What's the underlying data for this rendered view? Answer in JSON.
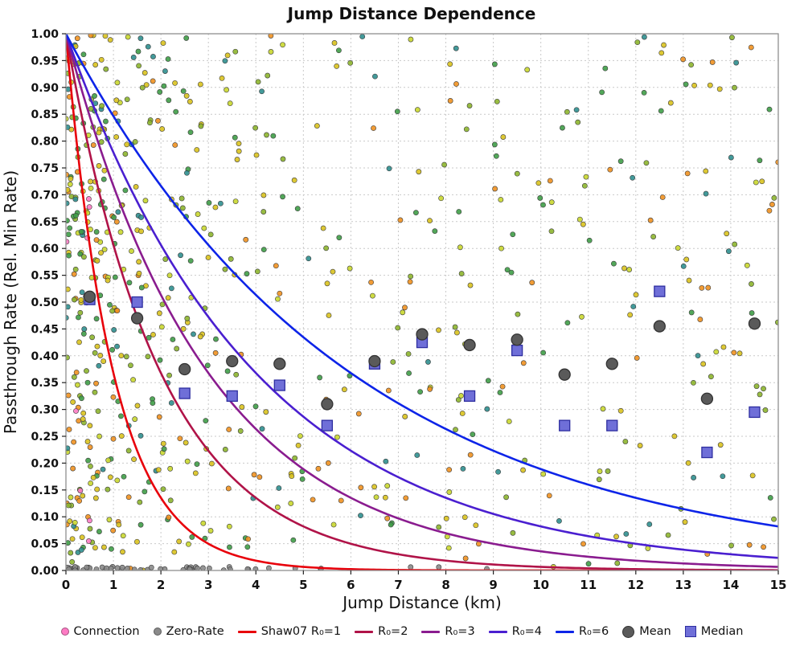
{
  "chart": {
    "title": "Jump Distance Dependence",
    "xlabel": "Jump Distance (km)",
    "ylabel": "Passthrough Rate (Rel. Min Rate)"
  },
  "chart_data": {
    "type": "scatter",
    "title": "Jump Distance Dependence",
    "xlabel": "Jump Distance (km)",
    "ylabel": "Passthrough Rate (Rel. Min Rate)",
    "xlim": [
      0,
      15
    ],
    "ylim": [
      0,
      1
    ],
    "x_ticks": [
      0,
      1,
      2,
      3,
      4,
      5,
      6,
      7,
      8,
      9,
      10,
      11,
      12,
      13,
      14,
      15
    ],
    "y_ticks": [
      0,
      0.05,
      0.1,
      0.15,
      0.2,
      0.25,
      0.3,
      0.35,
      0.4,
      0.45,
      0.5,
      0.55,
      0.6,
      0.65,
      0.7,
      0.75,
      0.8,
      0.85,
      0.9,
      0.95,
      1
    ],
    "grid": true,
    "legend_position": "bottom",
    "curves": [
      {
        "name": "Shaw07 R₀=1",
        "R0": 1,
        "color": "#e8000b",
        "formula": "y = exp(-x/1)"
      },
      {
        "name": "R₀=2",
        "R0": 2,
        "color": "#b01348",
        "formula": "y = exp(-x/2)"
      },
      {
        "name": "R₀=3",
        "R0": 3,
        "color": "#8a1c8f",
        "formula": "y = exp(-x/3)"
      },
      {
        "name": "R₀=4",
        "R0": 4,
        "color": "#4a1fd0",
        "formula": "y = exp(-x/4)"
      },
      {
        "name": "R₀=6",
        "R0": 6,
        "color": "#0d24e8",
        "formula": "y = exp(-x/6)"
      }
    ],
    "mean_points": {
      "name": "Mean",
      "color": "#5a5a5a",
      "edge": "#333333",
      "points": [
        [
          0.5,
          0.51
        ],
        [
          1.5,
          0.47
        ],
        [
          2.5,
          0.375
        ],
        [
          3.5,
          0.39
        ],
        [
          4.5,
          0.385
        ],
        [
          5.5,
          0.31
        ],
        [
          6.5,
          0.39
        ],
        [
          7.5,
          0.44
        ],
        [
          8.5,
          0.42
        ],
        [
          9.5,
          0.43
        ],
        [
          10.5,
          0.365
        ],
        [
          11.5,
          0.385
        ],
        [
          12.5,
          0.455
        ],
        [
          13.5,
          0.32
        ],
        [
          14.5,
          0.46
        ]
      ]
    },
    "median_points": {
      "name": "Median",
      "color": "#6f6fd8",
      "edge": "#2e2ea0",
      "points": [
        [
          0.5,
          0.505
        ],
        [
          1.5,
          0.5
        ],
        [
          2.5,
          0.33
        ],
        [
          3.5,
          0.325
        ],
        [
          4.5,
          0.345
        ],
        [
          5.5,
          0.27
        ],
        [
          6.5,
          0.385
        ],
        [
          7.5,
          0.425
        ],
        [
          8.5,
          0.325
        ],
        [
          9.5,
          0.41
        ],
        [
          10.5,
          0.27
        ],
        [
          11.5,
          0.27
        ],
        [
          12.5,
          0.52
        ],
        [
          13.5,
          0.22
        ],
        [
          14.5,
          0.295
        ]
      ]
    },
    "scatter_spec": {
      "note": "dense per-sample scatter; regenerated deterministically from seed",
      "seed": 42,
      "clustered_count": 300,
      "clustered_scale": 1.1,
      "uniform_count": 400,
      "zero_rate": {
        "count": 55,
        "scale": 2.2,
        "color": "#8a8a8a"
      },
      "connection": {
        "count": 8,
        "color": "#fd7bc4"
      },
      "colors": [
        "#d9c21e",
        "#8db52e",
        "#3f9d47",
        "#ef9120",
        "#2f8f8f",
        "#c9d72f"
      ],
      "color_weights": [
        0.24,
        0.2,
        0.18,
        0.14,
        0.12,
        0.12
      ],
      "point_radius": 3.1
    }
  },
  "legend": {
    "items": [
      {
        "label": "Connection",
        "marker": "dot",
        "color": "#fd7bc4"
      },
      {
        "label": "Zero-Rate",
        "marker": "dot",
        "color": "#8a8a8a"
      },
      {
        "label": "Shaw07 R₀=1",
        "marker": "line",
        "color": "#e8000b"
      },
      {
        "label": "R₀=2",
        "marker": "line",
        "color": "#b01348"
      },
      {
        "label": "R₀=3",
        "marker": "line",
        "color": "#8a1c8f"
      },
      {
        "label": "R₀=4",
        "marker": "line",
        "color": "#4a1fd0"
      },
      {
        "label": "R₀=6",
        "marker": "line",
        "color": "#0d24e8"
      },
      {
        "label": "Mean",
        "marker": "circle",
        "color": "#5a5a5a"
      },
      {
        "label": "Median",
        "marker": "square",
        "color": "#6f6fd8"
      }
    ]
  },
  "style": {
    "grid_color": "#c9c9c9",
    "plot_border_color": "#8f8f8f",
    "tick_color": "#222222",
    "point_edge_color": "#3a3a3a"
  }
}
